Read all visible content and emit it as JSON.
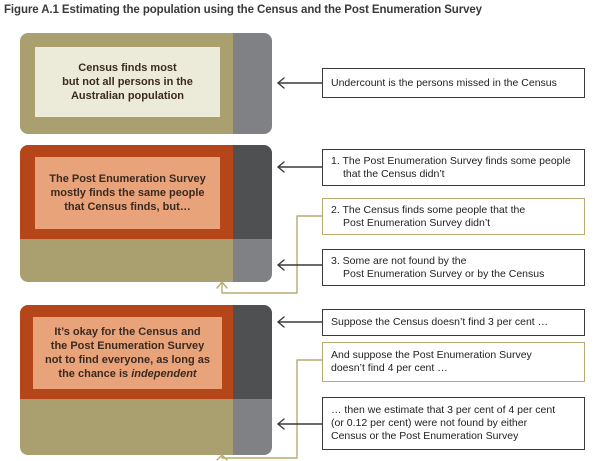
{
  "figure": {
    "title": "Figure A.1  Estimating the population using the Census and the Post Enumeration Survey"
  },
  "colors": {
    "olive": "#aa9f6e",
    "rust": "#b5461a",
    "peach": "#e8a37a",
    "cream": "#ecead8",
    "gray_dark": "#4e5052",
    "gray_mid": "#808184",
    "tan_line": "#b7ab72"
  },
  "panels": [
    {
      "inner_lines": [
        "Census finds most",
        "but not all persons in the",
        "Australian population"
      ],
      "notes": [
        {
          "style": "dark",
          "lines": [
            "Undercount is the persons missed in the Census"
          ]
        }
      ]
    },
    {
      "inner_lines": [
        "The Post Enumeration Survey",
        "mostly finds the same people",
        "that Census finds, but…"
      ],
      "notes": [
        {
          "style": "dark",
          "lines": [
            "1. The Post Enumeration Survey finds some people",
            "that the Census didn’t"
          ]
        },
        {
          "style": "tan",
          "lines": [
            "2. The Census finds some people that the",
            "Post Enumeration Survey didn’t"
          ]
        },
        {
          "style": "dark",
          "lines": [
            "3. Some are not found by the",
            "Post Enumeration Survey or by the Census"
          ]
        }
      ]
    },
    {
      "inner_lines": [
        "It’s okay for the Census and",
        "the Post Enumeration Survey",
        "not to find everyone, as long as"
      ],
      "inner_last_prefix": "the chance is ",
      "inner_last_emph": "independent",
      "notes": [
        {
          "style": "dark",
          "lines": [
            "Suppose the Census doesn’t find 3 per cent …"
          ]
        },
        {
          "style": "tan",
          "lines": [
            "And suppose the Post Enumeration Survey",
            "doesn’t find 4 per cent …"
          ]
        },
        {
          "style": "dark",
          "lines": [
            "… then we estimate that 3 per cent of 4 per cent",
            "(or 0.12 per cent) were not found by either",
            "Census or the Post Enumeration Survey"
          ]
        }
      ]
    }
  ]
}
